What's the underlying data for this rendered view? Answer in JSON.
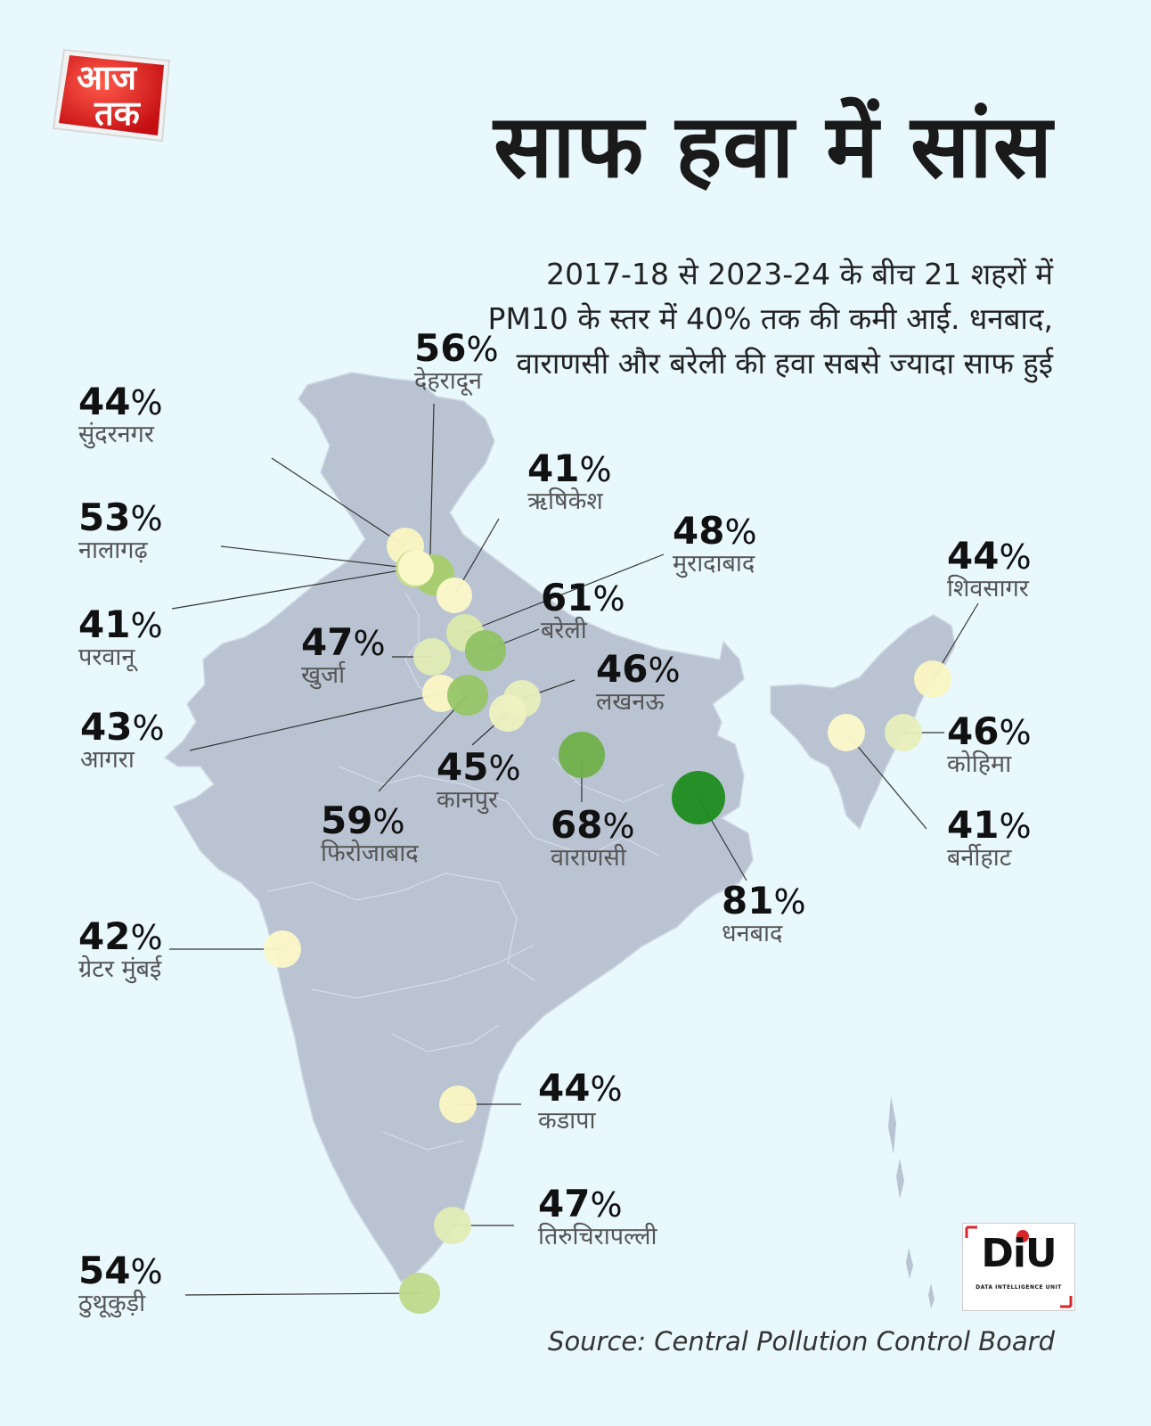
{
  "logo": {
    "line1": "आज",
    "line2": "तक"
  },
  "title": "साफ हवा में सांस",
  "subtitle": "2017-18 से 2023-24 के बीच 21 शहरों में PM10 के स्तर में 40% तक की कमी आई. धनबाद, वाराणसी और बरेली की हवा सबसे ज्यादा साफ हुई",
  "source": "Source: Central Pollution Control Board",
  "badge": {
    "text": "DiU",
    "subtext": "DATA INTELLIGENCE UNIT"
  },
  "colors": {
    "background": "#e8f8fd",
    "map_fill": "#b9c3d2",
    "low": "#fbf7c4",
    "mid": "#c6dd8e",
    "high": "#7bb34f",
    "highest": "#1e8c1e"
  },
  "cities": [
    {
      "name": "देहरादून",
      "value": "56",
      "sign": "%",
      "color": "#a6ce6b"
    },
    {
      "name": "सुंदरनगर",
      "value": "44",
      "sign": "%",
      "color": "#faf6c2"
    },
    {
      "name": "ऋषिकेश",
      "value": "41",
      "sign": "%",
      "color": "#fdf9ca"
    },
    {
      "name": "मुरादाबाद",
      "value": "48",
      "sign": "%",
      "color": "#dbe9ab"
    },
    {
      "name": "नालागढ़",
      "value": "53",
      "sign": "%",
      "color": "#c6dd8e"
    },
    {
      "name": "बरेली",
      "value": "61",
      "sign": "%",
      "color": "#8fc264"
    },
    {
      "name": "परवानू",
      "value": "41",
      "sign": "%",
      "color": "#fdf9ca"
    },
    {
      "name": "खुर्जा",
      "value": "47",
      "sign": "%",
      "color": "#e2ecb4"
    },
    {
      "name": "लखनऊ",
      "value": "46",
      "sign": "%",
      "color": "#e8efbb"
    },
    {
      "name": "आगरा",
      "value": "43",
      "sign": "%",
      "color": "#fbf7c4"
    },
    {
      "name": "कानपुर",
      "value": "45",
      "sign": "%",
      "color": "#eef2c0"
    },
    {
      "name": "फिरोजाबाद",
      "value": "59",
      "sign": "%",
      "color": "#96c567"
    },
    {
      "name": "वाराणसी",
      "value": "68",
      "sign": "%",
      "color": "#6fb04a"
    },
    {
      "name": "धनबाद",
      "value": "81",
      "sign": "%",
      "color": "#1e8c1e"
    },
    {
      "name": "शिवसागर",
      "value": "44",
      "sign": "%",
      "color": "#faf6c2"
    },
    {
      "name": "कोहिमा",
      "value": "46",
      "sign": "%",
      "color": "#e8efbb"
    },
    {
      "name": "बर्नीहाट",
      "value": "41",
      "sign": "%",
      "color": "#fdf9ca"
    },
    {
      "name": "ग्रेटर मुंबई",
      "value": "42",
      "sign": "%",
      "color": "#fcf8c8"
    },
    {
      "name": "कडापा",
      "value": "44",
      "sign": "%",
      "color": "#faf6c2"
    },
    {
      "name": "तिरुचिरापल्ली",
      "value": "47",
      "sign": "%",
      "color": "#e2ecb4"
    },
    {
      "name": "ठुथूकुड़ी",
      "value": "54",
      "sign": "%",
      "color": "#bfd98a"
    }
  ]
}
